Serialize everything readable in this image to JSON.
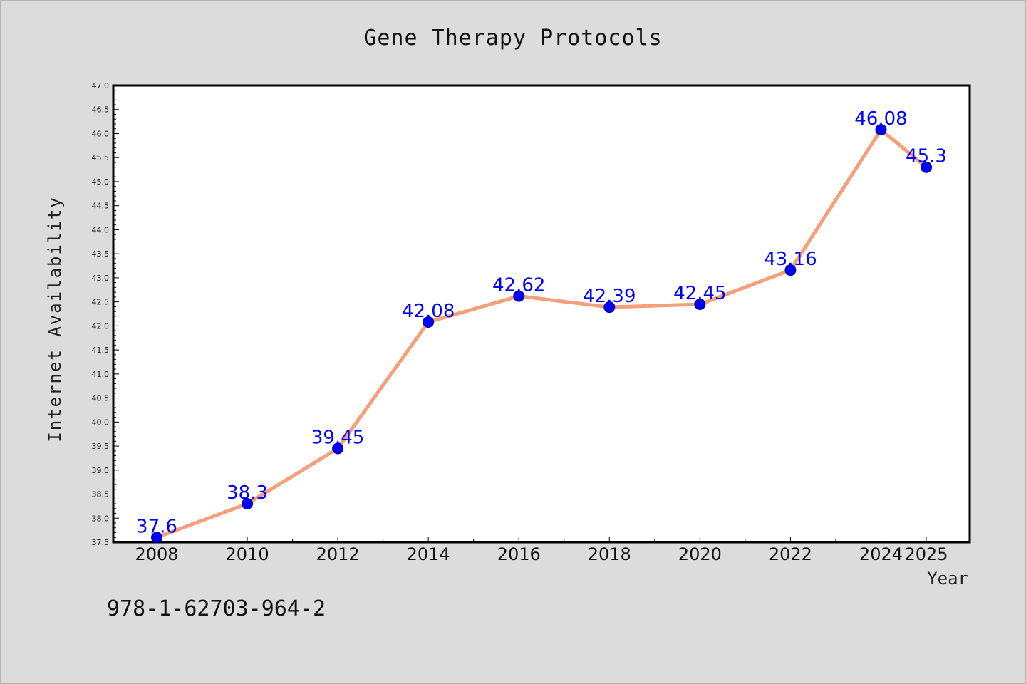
{
  "chart_data": {
    "type": "line",
    "title": "Gene Therapy Protocols",
    "xlabel": "Year",
    "ylabel": "Internet Availability",
    "categories": [
      "2008",
      "2010",
      "2012",
      "2014",
      "2016",
      "2018",
      "2020",
      "2022",
      "2024",
      "2025"
    ],
    "series": [
      {
        "values": [
          37.6,
          38.3,
          39.45,
          42.08,
          42.62,
          42.39,
          42.45,
          43.16,
          46.08,
          45.3
        ],
        "data_labels": [
          "37.6",
          "38.3",
          "39.45",
          "42.08",
          "42.62",
          "42.39",
          "42.45",
          "43.16",
          "46.08",
          "45.3"
        ]
      }
    ],
    "ylim": [
      37.5,
      47.0
    ],
    "yticks": [
      "37.5",
      "38.0",
      "38.5",
      "39.0",
      "39.5",
      "40.0",
      "40.5",
      "41.0",
      "41.5",
      "42.0",
      "42.5",
      "43.0",
      "43.5",
      "44.0",
      "44.5",
      "45.0",
      "45.5",
      "46.0",
      "46.5",
      "47.0"
    ],
    "grid": false,
    "legend": "none",
    "colors": {
      "line": "#f5a07a",
      "marker": "#0000ff",
      "marker_edge": "#00008b",
      "data_label": "#0000ff",
      "background": "#dcdcdc",
      "plot_background": "#ffffff"
    }
  },
  "annotation": {
    "isbn": "978-1-62703-964-2"
  }
}
